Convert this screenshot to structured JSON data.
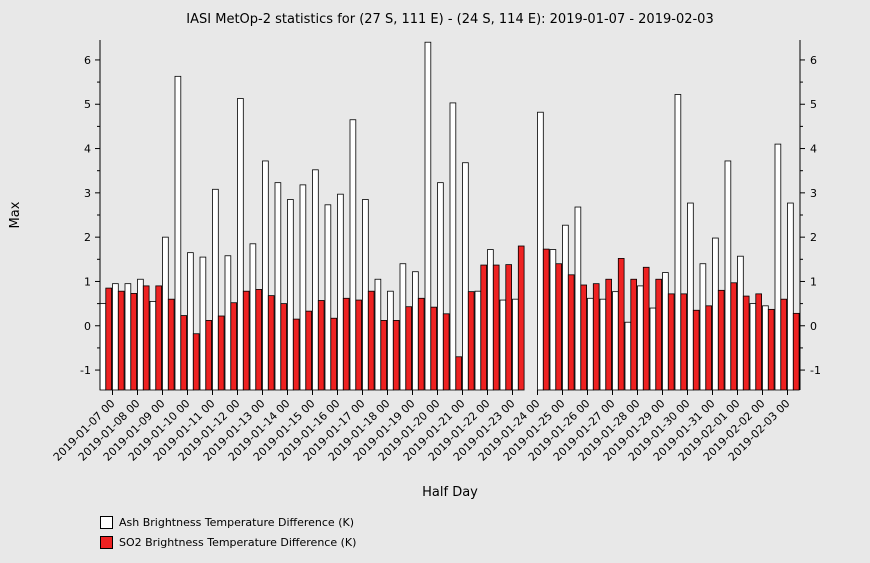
{
  "chart_data": {
    "type": "bar",
    "title": "IASI MetOp-2 statistics for (27 S, 111 E) - (24 S, 114 E): 2019-01-07 - 2019-02-03",
    "xlabel": "Half Day",
    "ylabel": "Max",
    "ylim": [
      -1.45,
      6.45
    ],
    "yticks": [
      -1,
      0,
      1,
      2,
      3,
      4,
      5,
      6
    ],
    "grid": false,
    "legend_position": "bottom-left",
    "categories": [
      "2019-01-07 00",
      "2019-01-07 12",
      "2019-01-08 00",
      "2019-01-08 12",
      "2019-01-09 00",
      "2019-01-09 12",
      "2019-01-10 00",
      "2019-01-10 12",
      "2019-01-11 00",
      "2019-01-11 12",
      "2019-01-12 00",
      "2019-01-12 12",
      "2019-01-13 00",
      "2019-01-13 12",
      "2019-01-14 00",
      "2019-01-14 12",
      "2019-01-15 00",
      "2019-01-15 12",
      "2019-01-16 00",
      "2019-01-16 12",
      "2019-01-17 00",
      "2019-01-17 12",
      "2019-01-18 00",
      "2019-01-18 12",
      "2019-01-19 00",
      "2019-01-19 12",
      "2019-01-20 00",
      "2019-01-20 12",
      "2019-01-21 00",
      "2019-01-21 12",
      "2019-01-22 00",
      "2019-01-22 12",
      "2019-01-23 00",
      "2019-01-23 12",
      "2019-01-24 00",
      "2019-01-24 12",
      "2019-01-25 00",
      "2019-01-25 12",
      "2019-01-26 00",
      "2019-01-26 12",
      "2019-01-27 00",
      "2019-01-27 12",
      "2019-01-28 00",
      "2019-01-28 12",
      "2019-01-29 00",
      "2019-01-29 12",
      "2019-01-30 00",
      "2019-01-30 12",
      "2019-01-31 00",
      "2019-01-31 12",
      "2019-02-01 00",
      "2019-02-01 12",
      "2019-02-02 00",
      "2019-02-02 12",
      "2019-02-03 00",
      "2019-02-03 12"
    ],
    "tick_labels": [
      "2019-01-07 00",
      "2019-01-08 00",
      "2019-01-09 00",
      "2019-01-10 00",
      "2019-01-11 00",
      "2019-01-12 00",
      "2019-01-13 00",
      "2019-01-14 00",
      "2019-01-15 00",
      "2019-01-16 00",
      "2019-01-17 00",
      "2019-01-18 00",
      "2019-01-19 00",
      "2019-01-20 00",
      "2019-01-21 00",
      "2019-01-22 00",
      "2019-01-23 00",
      "2019-01-24 00",
      "2019-01-25 00",
      "2019-01-26 00",
      "2019-01-27 00",
      "2019-01-28 00",
      "2019-01-29 00",
      "2019-01-30 00",
      "2019-01-31 00",
      "2019-02-01 00",
      "2019-02-02 00",
      "2019-02-03 00"
    ],
    "series": [
      {
        "name": "Ash Brightness Temperature Difference (K)",
        "color": "#ffffff",
        "values": [
          0.5,
          0.95,
          0.95,
          1.05,
          0.55,
          2.0,
          5.63,
          1.65,
          1.55,
          3.08,
          1.58,
          5.13,
          1.85,
          3.72,
          3.23,
          2.85,
          3.18,
          3.52,
          2.73,
          2.97,
          4.65,
          2.85,
          1.05,
          0.78,
          1.4,
          1.22,
          6.4,
          3.23,
          5.03,
          3.68,
          0.78,
          1.72,
          0.58,
          0.6,
          null,
          4.82,
          1.72,
          2.27,
          2.68,
          0.62,
          0.6,
          0.77,
          0.08,
          0.9,
          0.4,
          1.2,
          5.22,
          2.77,
          1.4,
          1.98,
          3.72,
          1.57,
          0.5,
          0.45,
          4.1,
          2.77
        ]
      },
      {
        "name": "SO2 Brightness Temperature Difference (K)",
        "color": "#ee2222",
        "values": [
          0.85,
          0.78,
          0.73,
          0.9,
          0.9,
          0.6,
          0.23,
          -0.18,
          0.12,
          0.22,
          0.52,
          0.78,
          0.82,
          0.68,
          0.5,
          0.15,
          0.33,
          0.57,
          0.17,
          0.62,
          0.58,
          0.78,
          0.12,
          0.12,
          0.43,
          0.62,
          0.42,
          0.27,
          -0.7,
          0.77,
          1.37,
          1.37,
          1.38,
          1.8,
          null,
          1.73,
          1.4,
          1.15,
          0.92,
          0.95,
          1.05,
          1.52,
          1.05,
          1.32,
          1.05,
          0.72,
          0.72,
          0.35,
          0.45,
          0.8,
          0.97,
          0.67,
          0.72,
          0.37,
          0.6,
          0.28
        ]
      }
    ]
  }
}
